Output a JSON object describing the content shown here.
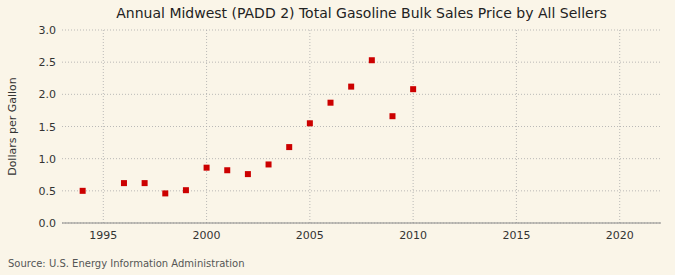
{
  "chart_data": {
    "type": "scatter",
    "title": "Annual Midwest (PADD 2) Total Gasoline Bulk Sales Price by All Sellers",
    "y_label": "Dollars per Gallon",
    "annotations": [
      "Source: U.S. Energy Information Administration"
    ],
    "x": [
      1994,
      1996,
      1997,
      1998,
      1999,
      2000,
      2001,
      2002,
      2003,
      2004,
      2005,
      2006,
      2007,
      2008,
      2009,
      2010
    ],
    "values": [
      0.5,
      0.62,
      0.62,
      0.46,
      0.51,
      0.86,
      0.82,
      0.76,
      0.91,
      1.18,
      1.55,
      1.87,
      2.12,
      2.53,
      1.66,
      2.08
    ],
    "color": "#cc0000",
    "marker": "square",
    "xlim": [
      1993,
      2022
    ],
    "ylim": [
      0.0,
      3.0
    ],
    "xticks": [
      1995,
      2000,
      2005,
      2010,
      2015,
      2020
    ],
    "yticks": [
      {
        "value": 0.0,
        "label": "0.0"
      },
      0.5,
      {
        "value": 1.0,
        "label": "1.0"
      },
      1.5,
      {
        "value": 2.0,
        "label": "2.0"
      },
      2.5,
      {
        "value": 3.0,
        "label": "3.0"
      }
    ],
    "grid": true
  }
}
